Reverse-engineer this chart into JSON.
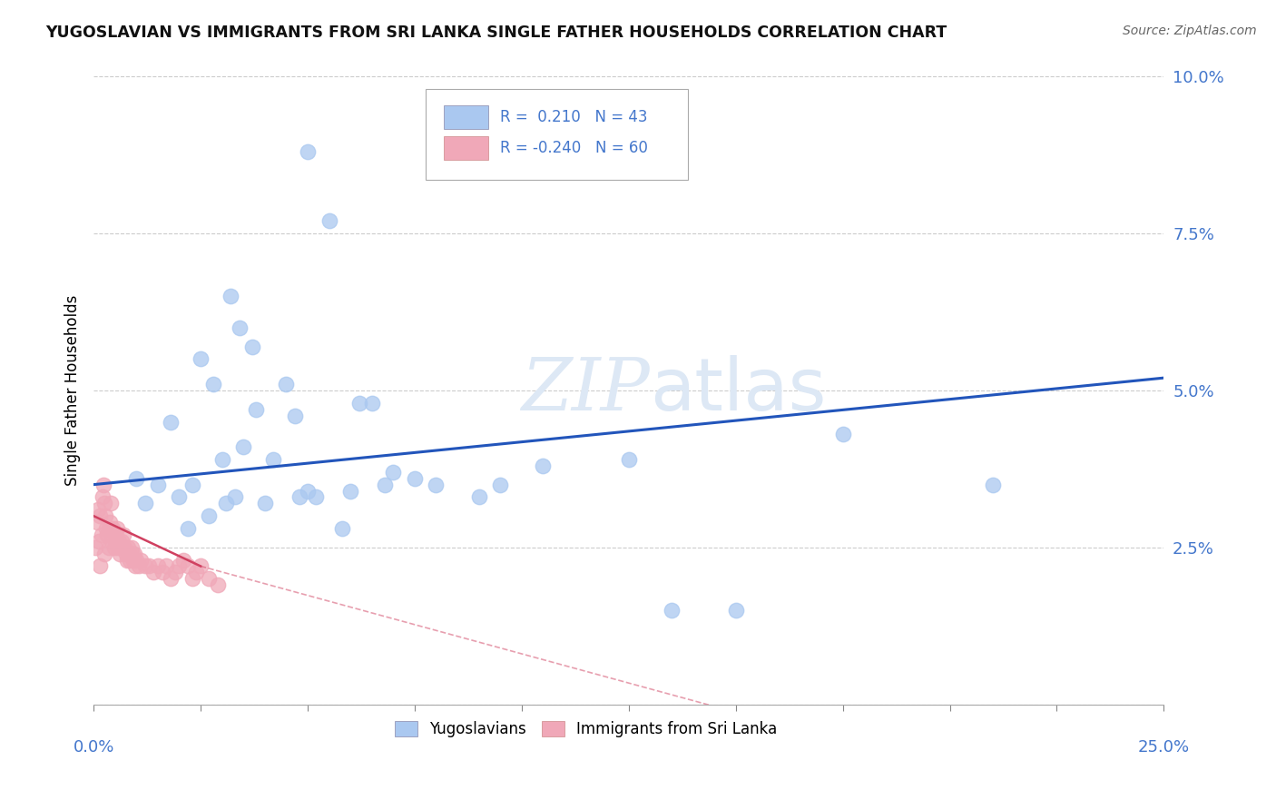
{
  "title": "YUGOSLAVIAN VS IMMIGRANTS FROM SRI LANKA SINGLE FATHER HOUSEHOLDS CORRELATION CHART",
  "source": "Source: ZipAtlas.com",
  "ylabel": "Single Father Households",
  "xlim": [
    0.0,
    25.0
  ],
  "ylim": [
    0.0,
    10.0
  ],
  "yticks": [
    0.0,
    2.5,
    5.0,
    7.5,
    10.0
  ],
  "ytick_labels": [
    "",
    "2.5%",
    "5.0%",
    "7.5%",
    "10.0%"
  ],
  "legend_blue_r": "0.210",
  "legend_blue_n": "43",
  "legend_pink_r": "-0.240",
  "legend_pink_n": "60",
  "blue_color": "#aac8f0",
  "pink_color": "#f0a8b8",
  "blue_line_color": "#2255bb",
  "pink_line_color": "#d04060",
  "watermark_color": "#dde8f5",
  "blue_scatter": [
    [
      1.5,
      3.5
    ],
    [
      1.8,
      4.5
    ],
    [
      2.0,
      3.3
    ],
    [
      2.2,
      2.8
    ],
    [
      2.5,
      5.5
    ],
    [
      2.8,
      5.1
    ],
    [
      3.0,
      3.9
    ],
    [
      3.2,
      6.5
    ],
    [
      3.4,
      6.0
    ],
    [
      3.5,
      4.1
    ],
    [
      3.7,
      5.7
    ],
    [
      3.8,
      4.7
    ],
    [
      4.0,
      3.2
    ],
    [
      4.2,
      3.9
    ],
    [
      4.5,
      5.1
    ],
    [
      4.7,
      4.6
    ],
    [
      5.0,
      3.4
    ],
    [
      5.0,
      8.8
    ],
    [
      5.5,
      7.7
    ],
    [
      6.0,
      3.4
    ],
    [
      6.2,
      4.8
    ],
    [
      6.5,
      4.8
    ],
    [
      7.0,
      3.7
    ],
    [
      7.5,
      3.6
    ],
    [
      8.0,
      3.5
    ],
    [
      9.0,
      3.3
    ],
    [
      9.5,
      3.5
    ],
    [
      10.5,
      3.8
    ],
    [
      12.5,
      3.9
    ],
    [
      13.5,
      1.5
    ],
    [
      15.0,
      1.5
    ],
    [
      17.5,
      4.3
    ],
    [
      21.0,
      3.5
    ],
    [
      1.0,
      3.6
    ],
    [
      1.2,
      3.2
    ],
    [
      2.3,
      3.5
    ],
    [
      2.7,
      3.0
    ],
    [
      3.1,
      3.2
    ],
    [
      3.3,
      3.3
    ],
    [
      4.8,
      3.3
    ],
    [
      5.2,
      3.3
    ],
    [
      5.8,
      2.8
    ],
    [
      6.8,
      3.5
    ]
  ],
  "pink_scatter": [
    [
      0.05,
      2.5
    ],
    [
      0.08,
      2.9
    ],
    [
      0.1,
      3.1
    ],
    [
      0.12,
      2.6
    ],
    [
      0.15,
      3.0
    ],
    [
      0.18,
      2.7
    ],
    [
      0.2,
      3.3
    ],
    [
      0.22,
      3.5
    ],
    [
      0.25,
      3.2
    ],
    [
      0.28,
      3.0
    ],
    [
      0.3,
      2.8
    ],
    [
      0.32,
      2.7
    ],
    [
      0.35,
      2.8
    ],
    [
      0.38,
      2.9
    ],
    [
      0.4,
      3.2
    ],
    [
      0.42,
      2.6
    ],
    [
      0.45,
      2.8
    ],
    [
      0.48,
      2.5
    ],
    [
      0.5,
      2.7
    ],
    [
      0.52,
      2.6
    ],
    [
      0.55,
      2.8
    ],
    [
      0.58,
      2.5
    ],
    [
      0.6,
      2.6
    ],
    [
      0.62,
      2.4
    ],
    [
      0.65,
      2.6
    ],
    [
      0.68,
      2.5
    ],
    [
      0.7,
      2.7
    ],
    [
      0.72,
      2.5
    ],
    [
      0.75,
      2.4
    ],
    [
      0.78,
      2.3
    ],
    [
      0.8,
      2.5
    ],
    [
      0.82,
      2.4
    ],
    [
      0.85,
      2.3
    ],
    [
      0.88,
      2.5
    ],
    [
      0.9,
      2.4
    ],
    [
      0.92,
      2.3
    ],
    [
      0.95,
      2.4
    ],
    [
      0.98,
      2.2
    ],
    [
      1.0,
      2.3
    ],
    [
      1.05,
      2.2
    ],
    [
      1.1,
      2.3
    ],
    [
      1.2,
      2.2
    ],
    [
      1.3,
      2.2
    ],
    [
      1.4,
      2.1
    ],
    [
      1.5,
      2.2
    ],
    [
      1.6,
      2.1
    ],
    [
      1.7,
      2.2
    ],
    [
      1.8,
      2.0
    ],
    [
      1.9,
      2.1
    ],
    [
      2.0,
      2.2
    ],
    [
      2.1,
      2.3
    ],
    [
      2.2,
      2.2
    ],
    [
      2.3,
      2.0
    ],
    [
      2.4,
      2.1
    ],
    [
      2.5,
      2.2
    ],
    [
      2.7,
      2.0
    ],
    [
      2.9,
      1.9
    ],
    [
      0.15,
      2.2
    ],
    [
      0.25,
      2.4
    ],
    [
      0.35,
      2.5
    ]
  ],
  "blue_line": [
    [
      0.0,
      3.5
    ],
    [
      25.0,
      5.2
    ]
  ],
  "pink_line_solid": [
    [
      0.0,
      3.0
    ],
    [
      2.5,
      2.2
    ]
  ],
  "pink_line_dashed": [
    [
      2.5,
      2.2
    ],
    [
      17.0,
      -0.5
    ]
  ]
}
